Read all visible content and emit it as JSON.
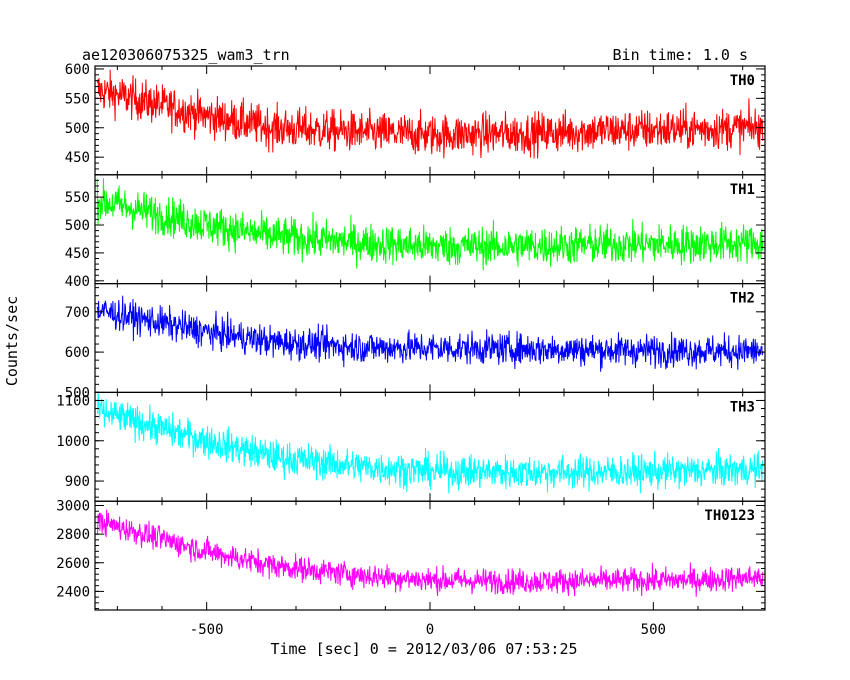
{
  "chart_data": {
    "type": "line",
    "title": "ae120306075325_wam3_trn",
    "subtitle": "Bin time: 1.0 s",
    "xlabel": "Time [sec] 0 = 2012/03/06 07:53:25",
    "ylabel": "Counts/sec",
    "xlim": [
      -750,
      750
    ],
    "x_ticks": [
      -500,
      0,
      500
    ],
    "grid": false,
    "panels": [
      {
        "name": "TH0",
        "color": "#ff0000",
        "ylim": [
          420,
          605
        ],
        "y_ticks": [
          450,
          500,
          550,
          600
        ],
        "trend": [
          [
            -750,
            565
          ],
          [
            -500,
            520
          ],
          [
            -350,
            500
          ],
          [
            -150,
            492
          ],
          [
            0,
            488
          ],
          [
            200,
            490
          ],
          [
            400,
            495
          ],
          [
            600,
            498
          ],
          [
            750,
            500
          ]
        ],
        "noise": 32
      },
      {
        "name": "TH1",
        "color": "#00ff00",
        "ylim": [
          395,
          590
        ],
        "y_ticks": [
          400,
          450,
          500,
          550
        ],
        "trend": [
          [
            -750,
            545
          ],
          [
            -500,
            500
          ],
          [
            -350,
            480
          ],
          [
            -150,
            468
          ],
          [
            0,
            462
          ],
          [
            200,
            462
          ],
          [
            400,
            465
          ],
          [
            600,
            466
          ],
          [
            750,
            468
          ]
        ],
        "noise": 32
      },
      {
        "name": "TH2",
        "color": "#0000ff",
        "ylim": [
          500,
          770
        ],
        "y_ticks": [
          500,
          600,
          700
        ],
        "trend": [
          [
            -750,
            705
          ],
          [
            -500,
            650
          ],
          [
            -350,
            625
          ],
          [
            -150,
            612
          ],
          [
            0,
            610
          ],
          [
            200,
            608
          ],
          [
            400,
            605
          ],
          [
            600,
            603
          ],
          [
            750,
            602
          ]
        ],
        "noise": 36
      },
      {
        "name": "TH3",
        "color": "#00ffff",
        "ylim": [
          850,
          1120
        ],
        "y_ticks": [
          900,
          1000,
          1100
        ],
        "trend": [
          [
            -750,
            1075
          ],
          [
            -500,
            1000
          ],
          [
            -350,
            960
          ],
          [
            -150,
            935
          ],
          [
            0,
            925
          ],
          [
            200,
            922
          ],
          [
            400,
            922
          ],
          [
            600,
            925
          ],
          [
            750,
            930
          ]
        ],
        "noise": 38
      },
      {
        "name": "TH0123",
        "color": "#ff00ff",
        "ylim": [
          2270,
          3030
        ],
        "y_ticks": [
          2400,
          2600,
          2800,
          3000
        ],
        "trend": [
          [
            -750,
            2895
          ],
          [
            -500,
            2680
          ],
          [
            -350,
            2580
          ],
          [
            -150,
            2510
          ],
          [
            0,
            2480
          ],
          [
            200,
            2470
          ],
          [
            400,
            2475
          ],
          [
            600,
            2480
          ],
          [
            750,
            2500
          ]
        ],
        "noise": 80
      }
    ]
  }
}
